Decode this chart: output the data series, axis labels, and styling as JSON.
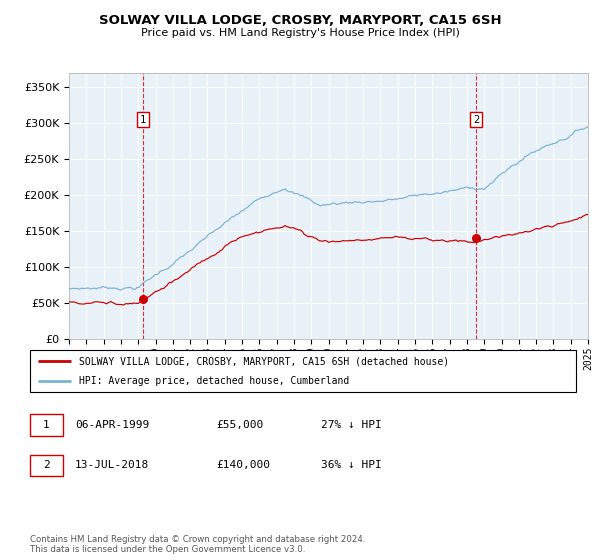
{
  "title": "SOLWAY VILLA LODGE, CROSBY, MARYPORT, CA15 6SH",
  "subtitle": "Price paid vs. HM Land Registry's House Price Index (HPI)",
  "hpi_color": "#7ab3d4",
  "price_color": "#cc0000",
  "plot_bg": "#e8f0f8",
  "grid_color": "#ffffff",
  "ylim": [
    0,
    370000
  ],
  "yticks": [
    0,
    50000,
    100000,
    150000,
    200000,
    250000,
    300000,
    350000
  ],
  "ytick_labels": [
    "£0",
    "£50K",
    "£100K",
    "£150K",
    "£200K",
    "£250K",
    "£300K",
    "£350K"
  ],
  "sale1_date_num": 1999.27,
  "sale1_price": 55000,
  "sale2_date_num": 2018.53,
  "sale2_price": 140000,
  "legend_property": "SOLWAY VILLA LODGE, CROSBY, MARYPORT, CA15 6SH (detached house)",
  "legend_hpi": "HPI: Average price, detached house, Cumberland",
  "note1_date": "06-APR-1999",
  "note1_price": "£55,000",
  "note1_hpi": "27% ↓ HPI",
  "note2_date": "13-JUL-2018",
  "note2_price": "£140,000",
  "note2_hpi": "36% ↓ HPI",
  "footer": "Contains HM Land Registry data © Crown copyright and database right 2024.\nThis data is licensed under the Open Government Licence v3.0.",
  "xstart": 1995,
  "xend": 2025
}
